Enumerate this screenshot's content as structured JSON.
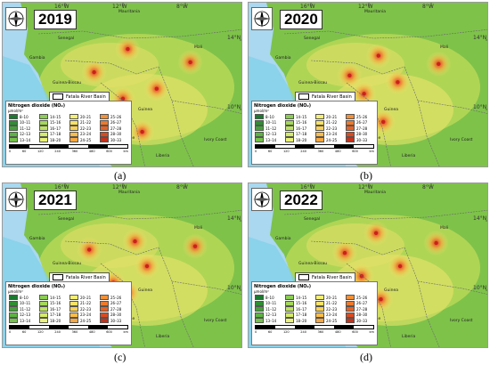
{
  "panels": [
    {
      "year": "2019",
      "caption": "(a)",
      "hotspots": [
        [
          0.52,
          0.28
        ],
        [
          0.78,
          0.36
        ],
        [
          0.64,
          0.52
        ],
        [
          0.58,
          0.78
        ],
        [
          0.5,
          0.58
        ],
        [
          0.38,
          0.42
        ]
      ]
    },
    {
      "year": "2020",
      "caption": "(b)",
      "hotspots": [
        [
          0.54,
          0.32
        ],
        [
          0.79,
          0.37
        ],
        [
          0.62,
          0.48
        ],
        [
          0.56,
          0.72
        ],
        [
          0.48,
          0.55
        ],
        [
          0.42,
          0.44
        ]
      ]
    },
    {
      "year": "2021",
      "caption": "(c)",
      "hotspots": [
        [
          0.55,
          0.35
        ],
        [
          0.8,
          0.38
        ],
        [
          0.6,
          0.5
        ],
        [
          0.52,
          0.66
        ],
        [
          0.46,
          0.6
        ],
        [
          0.36,
          0.4
        ]
      ]
    },
    {
      "year": "2022",
      "caption": "(d)",
      "hotspots": [
        [
          0.53,
          0.3
        ],
        [
          0.78,
          0.36
        ],
        [
          0.63,
          0.5
        ],
        [
          0.55,
          0.7
        ],
        [
          0.47,
          0.56
        ],
        [
          0.4,
          0.42
        ]
      ]
    }
  ],
  "map_labels": {
    "lon_1": "16°W",
    "lon_2": "12°W",
    "lon_3": "8°W",
    "lat_1": "14°N",
    "lat_2": "10°N",
    "places": {
      "mauritania": "Mauritania",
      "senegal": "Senegal",
      "mali": "Mali",
      "gambia": "Gambia",
      "guinea_bissau": "Guinea-Bissau",
      "guinea": "Guinea",
      "sierra_leone": "Sierra Leone",
      "liberia": "Liberia",
      "ivory_coast": "Ivory Coast"
    }
  },
  "basin_legend": "Fatala River Basin",
  "legend": {
    "title": "Nitrogen dioxide (NO₂)",
    "unit": "μmol/m²",
    "items": [
      {
        "label": "8–10",
        "color": "#1a7a2e"
      },
      {
        "label": "10–11",
        "color": "#2f8f32"
      },
      {
        "label": "11–12",
        "color": "#46a03a"
      },
      {
        "label": "12–13",
        "color": "#5db342"
      },
      {
        "label": "13–14",
        "color": "#74c24a"
      },
      {
        "label": "14–15",
        "color": "#8bcd52"
      },
      {
        "label": "15–16",
        "color": "#a4d85a"
      },
      {
        "label": "16–17",
        "color": "#bde263"
      },
      {
        "label": "17–18",
        "color": "#d4ea6c"
      },
      {
        "label": "18–20",
        "color": "#e9f276"
      },
      {
        "label": "20–21",
        "color": "#f5ef72"
      },
      {
        "label": "21–22",
        "color": "#f9e264"
      },
      {
        "label": "22–23",
        "color": "#fbd156"
      },
      {
        "label": "23–24",
        "color": "#fbbd4a"
      },
      {
        "label": "24–25",
        "color": "#f9a73f"
      },
      {
        "label": "25–26",
        "color": "#f59034"
      },
      {
        "label": "26–27",
        "color": "#ef7a2b"
      },
      {
        "label": "27–28",
        "color": "#e76224"
      },
      {
        "label": "28–30",
        "color": "#dc4a1e"
      },
      {
        "label": "30–33",
        "color": "#c8311a"
      }
    ]
  },
  "scale": [
    "0",
    "60",
    "120",
    "240",
    "360",
    "480",
    "600",
    "km"
  ]
}
